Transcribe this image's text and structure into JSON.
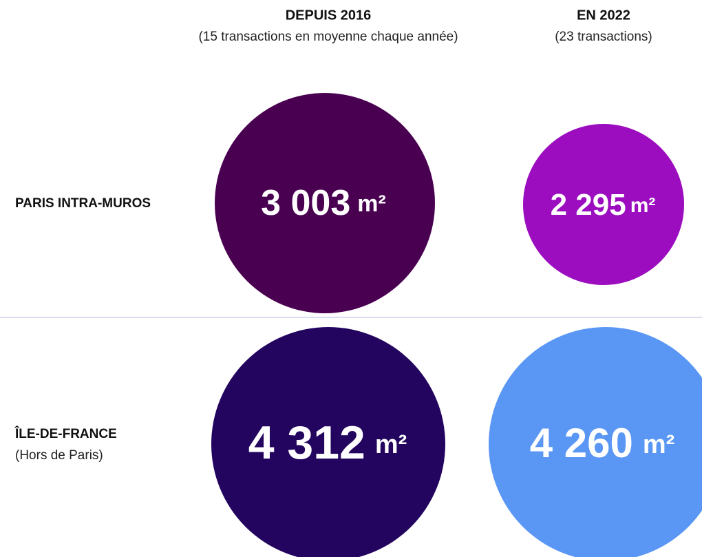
{
  "columns": [
    {
      "title": "DEPUIS 2016",
      "subtitle": "(15 transactions en moyenne chaque année)"
    },
    {
      "title": "EN 2022",
      "subtitle": "(23 transactions)"
    }
  ],
  "rows": [
    {
      "label": "PARIS INTRA-MUROS",
      "cells": [
        {
          "value": "3 003",
          "unit": "m²"
        },
        {
          "value": "2 295",
          "unit": "m²"
        }
      ]
    },
    {
      "label": "ÎLE-DE-FRANCE",
      "sublabel": "(Hors de Paris)",
      "cells": [
        {
          "value": "4 312",
          "unit": "m²"
        },
        {
          "value": "4 260",
          "unit": "m²"
        }
      ]
    }
  ]
}
